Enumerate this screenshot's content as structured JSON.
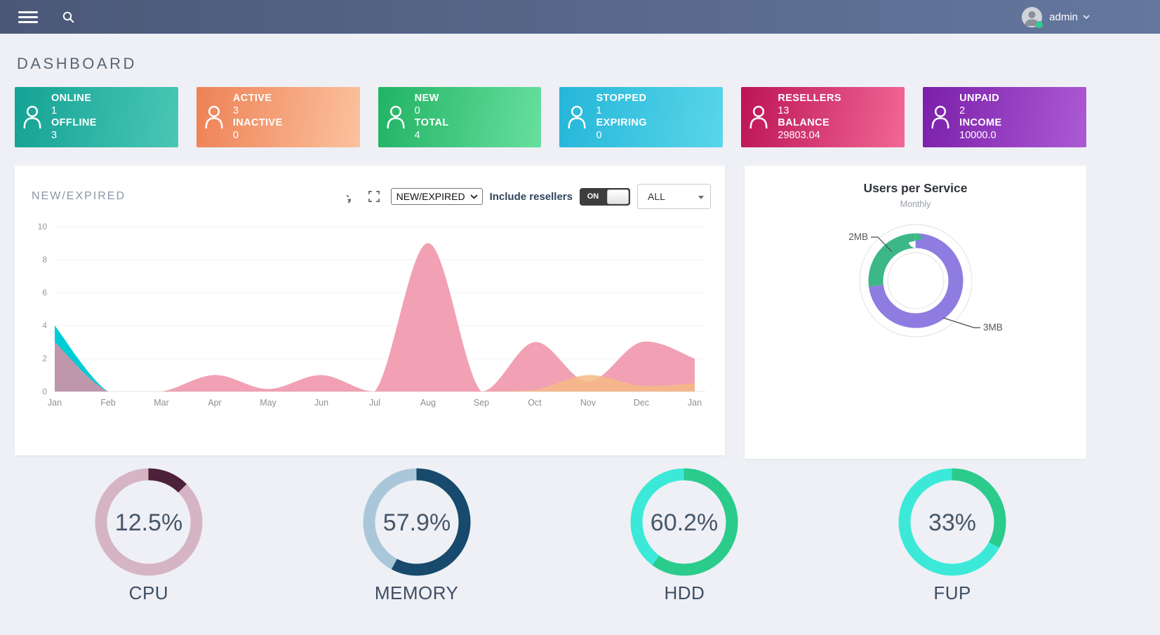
{
  "navbar": {
    "user_label": "admin",
    "status_color": "#2ecc8e"
  },
  "page": {
    "title": "DASHBOARD"
  },
  "stat_cards": [
    {
      "name": "online-offline",
      "color_from": "#14a294",
      "color_to": "#4ac7b6",
      "items": [
        {
          "label": "ONLINE",
          "value": "1"
        },
        {
          "label": "OFFLINE",
          "value": "3"
        }
      ]
    },
    {
      "name": "active-inactive",
      "color_from": "#ee8155",
      "color_to": "#fbc29e",
      "items": [
        {
          "label": "ACTIVE",
          "value": "3"
        },
        {
          "label": "INACTIVE",
          "value": "0"
        }
      ]
    },
    {
      "name": "new-total",
      "color_from": "#21b364",
      "color_to": "#68df9e",
      "items": [
        {
          "label": "NEW",
          "value": "0"
        },
        {
          "label": "TOTAL",
          "value": "4"
        }
      ]
    },
    {
      "name": "stopped-expiring",
      "color_from": "#24b6d9",
      "color_to": "#59d6e9",
      "items": [
        {
          "label": "STOPPED",
          "value": "1"
        },
        {
          "label": "EXPIRING",
          "value": "0"
        }
      ]
    },
    {
      "name": "resellers-balance",
      "color_from": "#bc1455",
      "color_to": "#f26795",
      "items": [
        {
          "label": "RESELLERS",
          "value": "13"
        },
        {
          "label": "BALANCE",
          "value": "29803.04"
        }
      ]
    },
    {
      "name": "unpaid-income",
      "color_from": "#7b1fa9",
      "color_to": "#ad5ad5",
      "items": [
        {
          "label": "UNPAID",
          "value": "2"
        },
        {
          "label": "INCOME",
          "value": "10000.0"
        }
      ]
    }
  ],
  "chart_panel": {
    "title": "NEW/EXPIRED",
    "controls": {
      "chart_select_value": "NEW/EXPIRED",
      "include_resellers_label": "Include resellers",
      "toggle_state": "ON",
      "filter_select_value": "ALL"
    }
  },
  "users_panel": {
    "title": "Users per Service",
    "subtitle": "Monthly"
  },
  "chart_data": [
    {
      "type": "area",
      "title": "NEW/EXPIRED",
      "x": [
        "Jan",
        "Feb",
        "Mar",
        "Apr",
        "May",
        "Jun",
        "Jul",
        "Aug",
        "Sep",
        "Oct",
        "Nov",
        "Dec",
        "Jan"
      ],
      "xlabel": "",
      "ylabel": "",
      "ylim": [
        0,
        10
      ],
      "yticks": [
        0,
        2,
        4,
        6,
        8,
        10
      ],
      "grid": true,
      "legend": "none",
      "series": [
        {
          "name": "expired-cyan",
          "color": "#00ccd5",
          "opacity": 1.0,
          "values": [
            4,
            0,
            0,
            0,
            0,
            0,
            0,
            0,
            0,
            0,
            0,
            0,
            0
          ]
        },
        {
          "name": "new-pink",
          "color": "#ee8aa0",
          "opacity": 0.8,
          "values": [
            3,
            0,
            0,
            1,
            0.15,
            1,
            0,
            9,
            0,
            3,
            0.6,
            3,
            2
          ]
        },
        {
          "name": "other-orange",
          "color": "#f6ba85",
          "opacity": 0.85,
          "values": [
            0,
            0,
            0,
            0,
            0,
            0,
            0,
            0,
            0,
            0.1,
            1,
            0.35,
            0.5
          ]
        }
      ]
    },
    {
      "type": "pie",
      "title": "Users per Service",
      "subtitle": "Monthly",
      "slices": [
        {
          "label": "3MB",
          "value": 73,
          "color": "#8f7ce1"
        },
        {
          "label": "2MB",
          "value": 27,
          "color": "#3cb787"
        }
      ]
    },
    {
      "type": "gauge",
      "gauges": [
        {
          "label": "CPU",
          "value": 12.5,
          "display": "12.5%",
          "fill_color": "#4c2139",
          "track_color": "#d5b4c4"
        },
        {
          "label": "MEMORY",
          "value": 57.9,
          "display": "57.9%",
          "fill_color": "#174a6c",
          "track_color": "#aac7da"
        },
        {
          "label": "HDD",
          "value": 60.2,
          "display": "60.2%",
          "fill_color": "#2bcb8c",
          "track_color": "#3ce9d9"
        },
        {
          "label": "FUP",
          "value": 33,
          "display": "33%",
          "fill_color": "#2bcb8c",
          "track_color": "#3ce9d9"
        }
      ]
    }
  ]
}
